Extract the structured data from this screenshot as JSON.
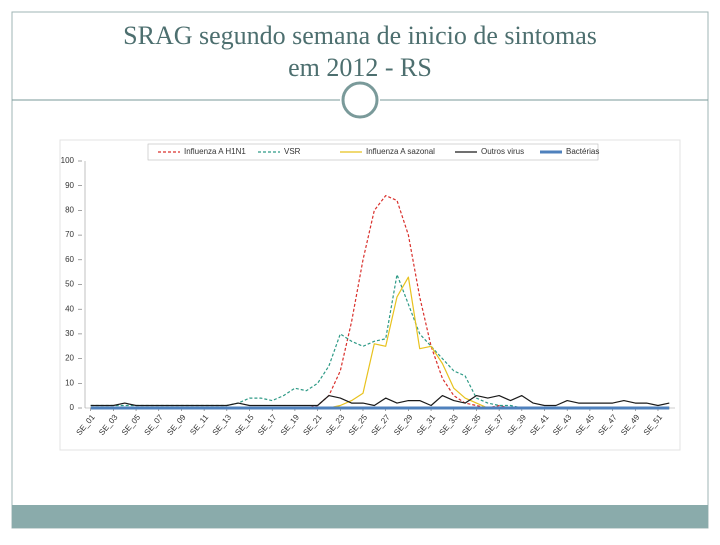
{
  "chart_data": {
    "type": "line",
    "title": [
      "SRAG segundo semana de inicio de sintomas",
      "em 2012 - RS"
    ],
    "categories": [
      "SE_01",
      null,
      "SE_03",
      null,
      "SE_05",
      null,
      "SE_07",
      null,
      "SE_09",
      null,
      "SE_11",
      null,
      "SE_13",
      null,
      "SE_15",
      null,
      "SE_17",
      null,
      "SE_19",
      null,
      "SE_21",
      null,
      "SE_23",
      null,
      "SE_25",
      null,
      "SE_27",
      null,
      "SE_29",
      null,
      "SE_31",
      null,
      "SE_33",
      null,
      "SE_35",
      null,
      "SE_37",
      null,
      "SE_39",
      null,
      "SE_41",
      null,
      "SE_43",
      null,
      "SE_45",
      null,
      "SE_47",
      null,
      "SE_49",
      null,
      "SE_51",
      null
    ],
    "series": [
      {
        "name": "Influenza A H1N1",
        "color": "#d9302c",
        "line_style": "dashed",
        "values": [
          0,
          0,
          0,
          0,
          0,
          0,
          0,
          0,
          0,
          0,
          0,
          0,
          0,
          0,
          0,
          0,
          0,
          0,
          0,
          0,
          1,
          5,
          15,
          35,
          60,
          80,
          86,
          84,
          70,
          45,
          25,
          12,
          5,
          2,
          1,
          0,
          1,
          0,
          0,
          0,
          0,
          0,
          0,
          0,
          0,
          0,
          0,
          0,
          0,
          0,
          0,
          0
        ]
      },
      {
        "name": "VSR",
        "color": "#2e9a86",
        "line_style": "dashed",
        "values": [
          1,
          1,
          1,
          1,
          1,
          1,
          1,
          1,
          1,
          1,
          1,
          1,
          1,
          2,
          4,
          4,
          3,
          5,
          8,
          7,
          10,
          17,
          30,
          27,
          25,
          27,
          28,
          54,
          42,
          30,
          25,
          20,
          15,
          13,
          4,
          2,
          1,
          1,
          0,
          0,
          0,
          0,
          0,
          0,
          0,
          0,
          0,
          0,
          0,
          0,
          0,
          0
        ]
      },
      {
        "name": "Influenza A sazonal",
        "color": "#e8c21e",
        "line_style": "solid",
        "values": [
          0,
          0,
          0,
          0,
          0,
          0,
          0,
          0,
          0,
          0,
          0,
          0,
          0,
          0,
          0,
          0,
          0,
          0,
          0,
          0,
          0,
          0,
          1,
          3,
          6,
          26,
          25,
          45,
          53,
          24,
          25,
          18,
          8,
          4,
          2,
          0,
          0,
          0,
          0,
          0,
          0,
          0,
          0,
          0,
          0,
          0,
          0,
          0,
          0,
          0,
          0,
          0
        ]
      },
      {
        "name": "Outros virus",
        "color": "#1a1a1a",
        "line_style": "solid",
        "values": [
          1,
          1,
          1,
          2,
          1,
          1,
          1,
          1,
          1,
          1,
          1,
          1,
          1,
          2,
          1,
          1,
          1,
          1,
          1,
          1,
          1,
          5,
          4,
          2,
          2,
          1,
          4,
          2,
          3,
          3,
          1,
          5,
          3,
          2,
          5,
          4,
          5,
          3,
          5,
          2,
          1,
          1,
          3,
          2,
          2,
          2,
          2,
          3,
          2,
          2,
          1,
          2
        ]
      },
      {
        "name": "Bactérias",
        "color": "#4f81bd",
        "line_style": "thick",
        "values": [
          0,
          0,
          0,
          0,
          0,
          0,
          0,
          0,
          0,
          0,
          0,
          0,
          0,
          0,
          0,
          0,
          0,
          0,
          0,
          0,
          0,
          0,
          0,
          0,
          0,
          0,
          0,
          0,
          0,
          0,
          0,
          0,
          0,
          0,
          0,
          0,
          0,
          0,
          0,
          0,
          0,
          0,
          0,
          0,
          0,
          0,
          0,
          0,
          0,
          0,
          0,
          0
        ]
      }
    ],
    "ylim": [
      0,
      100
    ],
    "yticks": [
      0,
      10,
      20,
      30,
      40,
      50,
      60,
      70,
      80,
      90,
      100
    ],
    "grid": false
  }
}
